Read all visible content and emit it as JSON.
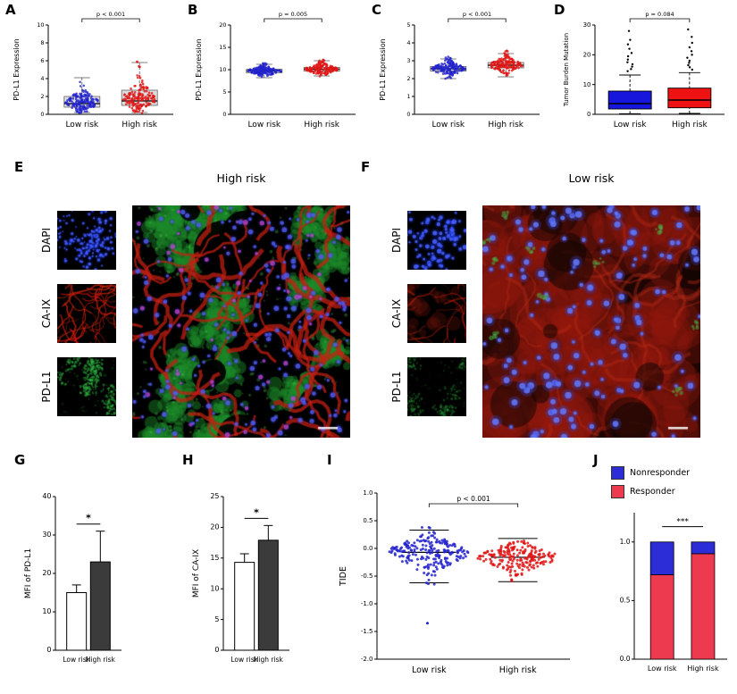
{
  "panels": {
    "a": {
      "letter": "A"
    },
    "b": {
      "letter": "B"
    },
    "c": {
      "letter": "C"
    },
    "d": {
      "letter": "D"
    },
    "e": {
      "letter": "E"
    },
    "f": {
      "letter": "F"
    },
    "g": {
      "letter": "G"
    },
    "h": {
      "letter": "H"
    },
    "i": {
      "letter": "I"
    },
    "j": {
      "letter": "J"
    }
  },
  "microscopy": {
    "e": {
      "title": "High risk",
      "rows": [
        "DAPI",
        "CA-IX",
        "PD-L1"
      ]
    },
    "f": {
      "title": "Low risk",
      "rows": [
        "DAPI",
        "CA-IX",
        "PD-L1"
      ]
    }
  },
  "colors": {
    "low_risk_blue": "#2323cd",
    "high_risk_red": "#e01616",
    "box_gray": "#d9d9d9",
    "bar_dark": "#3b3b3b"
  },
  "chart_data": [
    {
      "panel": "A",
      "type": "box-jitter",
      "ylabel": "PD-L1 Expression",
      "ylim": [
        0,
        10
      ],
      "yticks": [
        0,
        2,
        4,
        6,
        8,
        10
      ],
      "p_label": "p < 0.001",
      "groups": [
        {
          "label": "Low risk",
          "color": "#2323cd",
          "n": 170,
          "center": 1.4,
          "spread": 0.6,
          "min": 0.15,
          "max": 4.3,
          "box": {
            "q1": 0.8,
            "median": 1.2,
            "q3": 2.0,
            "lo": 0.2,
            "hi": 4.1
          }
        },
        {
          "label": "High risk",
          "color": "#e01616",
          "n": 170,
          "center": 1.8,
          "spread": 0.85,
          "min": 0.15,
          "max": 6.1,
          "box": {
            "q1": 1.0,
            "median": 1.5,
            "q3": 2.7,
            "lo": 0.2,
            "hi": 5.8
          }
        }
      ]
    },
    {
      "panel": "B",
      "type": "box-jitter",
      "ylabel": "PD-L1 Expression",
      "ylim": [
        0,
        20
      ],
      "yticks": [
        0,
        5,
        10,
        15,
        20
      ],
      "p_label": "p = 0.005",
      "groups": [
        {
          "label": "Low risk",
          "color": "#2323cd",
          "n": 170,
          "center": 9.7,
          "spread": 0.55,
          "min": 7.8,
          "max": 11.6,
          "box": {
            "q1": 9.3,
            "median": 9.7,
            "q3": 10.1,
            "lo": 8.2,
            "hi": 11.2
          }
        },
        {
          "label": "High risk",
          "color": "#e01616",
          "n": 170,
          "center": 10.1,
          "spread": 0.6,
          "min": 8.2,
          "max": 12.4,
          "box": {
            "q1": 9.7,
            "median": 10.1,
            "q3": 10.5,
            "lo": 8.6,
            "hi": 12.0
          }
        }
      ]
    },
    {
      "panel": "C",
      "type": "box-jitter",
      "ylabel": "PD-L1 Expression",
      "ylim": [
        0,
        5
      ],
      "yticks": [
        0,
        1,
        2,
        3,
        4,
        5
      ],
      "p_label": "p < 0.001",
      "groups": [
        {
          "label": "Low risk",
          "color": "#2323cd",
          "n": 170,
          "center": 2.55,
          "spread": 0.2,
          "min": 1.9,
          "max": 3.3,
          "box": {
            "q1": 2.42,
            "median": 2.55,
            "q3": 2.68,
            "lo": 2.0,
            "hi": 3.1
          }
        },
        {
          "label": "High risk",
          "color": "#e01616",
          "n": 170,
          "center": 2.75,
          "spread": 0.22,
          "min": 2.0,
          "max": 3.6,
          "box": {
            "q1": 2.6,
            "median": 2.75,
            "q3": 2.9,
            "lo": 2.1,
            "hi": 3.4
          }
        }
      ]
    },
    {
      "panel": "D",
      "type": "box",
      "ylabel": "Tumor Burden Mutation",
      "ylim": [
        0,
        30
      ],
      "yticks": [
        0,
        10,
        20,
        30
      ],
      "p_label": "p = 0.084",
      "groups": [
        {
          "label": "Low risk",
          "color": "#1616dd",
          "box": {
            "q1": 1.8,
            "median": 3.6,
            "q3": 7.8,
            "lo": 0.2,
            "hi": 13.2
          },
          "outliers": [
            14.5,
            15.2,
            16,
            16.8,
            17.5,
            18.4,
            19.5,
            20.6,
            22,
            23.5,
            25,
            28
          ]
        },
        {
          "label": "High risk",
          "color": "#ee1212",
          "box": {
            "q1": 2.2,
            "median": 4.8,
            "q3": 8.8,
            "lo": 0.3,
            "hi": 14
          },
          "outliers": [
            15,
            15.8,
            16.5,
            17.3,
            18,
            19,
            20,
            21.2,
            22.5,
            24,
            26,
            28.5
          ]
        }
      ]
    },
    {
      "panel": "G",
      "type": "bar",
      "ylabel": "MFI of PD-L1",
      "ylim": [
        0,
        40
      ],
      "yticks": [
        0,
        10,
        20,
        30,
        40
      ],
      "sig": "*",
      "bars": [
        {
          "label": "Low risk",
          "value": 15,
          "err": 2,
          "fill": "#ffffff"
        },
        {
          "label": "High risk",
          "value": 23,
          "err": 8,
          "fill": "#3b3b3b"
        }
      ]
    },
    {
      "panel": "H",
      "type": "bar",
      "ylabel": "MFI of CA-IX",
      "ylim": [
        0,
        25
      ],
      "yticks": [
        0,
        5,
        10,
        15,
        20,
        25
      ],
      "sig": "*",
      "bars": [
        {
          "label": "Low risk",
          "value": 14.3,
          "err": 1.4,
          "fill": "#ffffff"
        },
        {
          "label": "High risk",
          "value": 17.9,
          "err": 2.4,
          "fill": "#3b3b3b"
        }
      ]
    },
    {
      "panel": "I",
      "type": "jitter",
      "ylabel": "TIDE",
      "ylim": [
        -2,
        1
      ],
      "yticks": [
        1,
        0.5,
        0,
        -0.5,
        -1,
        -1.5,
        -2
      ],
      "ytick_labels": [
        "1.0",
        "0.5",
        "0.0",
        "-0.5",
        "-1.0",
        "-1.5",
        "-2.0"
      ],
      "p_label": "p < 0.001",
      "groups": [
        {
          "label": "Low risk",
          "color": "#2323cd",
          "n": 210,
          "center": -0.07,
          "spread": 0.17,
          "min": -0.8,
          "max": 0.38,
          "median": -0.07,
          "lo": -0.62,
          "hi": 0.33,
          "outliers": [
            -1.35
          ]
        },
        {
          "label": "High risk",
          "color": "#e01616",
          "n": 210,
          "center": -0.16,
          "spread": 0.13,
          "min": -0.72,
          "max": 0.22,
          "median": -0.16,
          "lo": -0.6,
          "hi": 0.18,
          "outliers": []
        }
      ]
    },
    {
      "panel": "J",
      "type": "stacked-bar",
      "ylim": [
        0,
        1.25
      ],
      "yticks": [
        0,
        0.5,
        1
      ],
      "ytick_labels": [
        "0.0",
        "0.5",
        "1.0"
      ],
      "sig": "***",
      "legend": [
        {
          "label": "Nonresponder",
          "color": "#2d2dd8"
        },
        {
          "label": "Responder",
          "color": "#ee3a4e"
        }
      ],
      "bars": [
        {
          "label": "Low risk",
          "responder": 0.72,
          "nonresponder": 0.28
        },
        {
          "label": "High risk",
          "responder": 0.9,
          "nonresponder": 0.1
        }
      ]
    }
  ]
}
